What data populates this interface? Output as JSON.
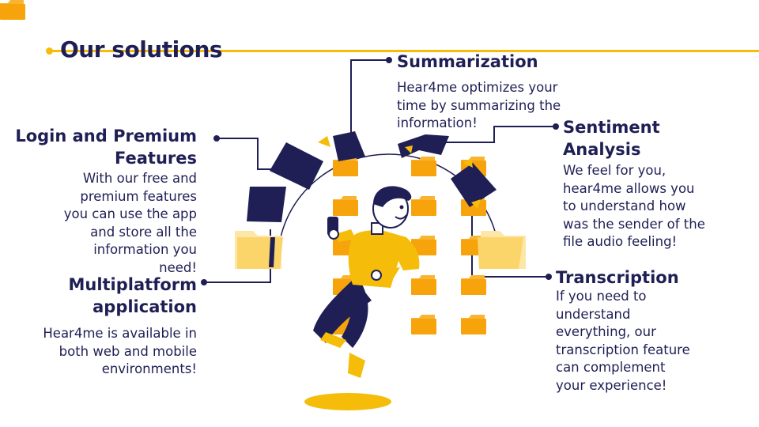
{
  "page": {
    "title": "Our solutions"
  },
  "features": {
    "summarization": {
      "title": "Summarization",
      "lines": [
        "Hear4me optimizes your",
        "time by summarizing the",
        "information!"
      ]
    },
    "sentiment": {
      "title_lines": [
        "Sentiment",
        "Analysis"
      ],
      "lines": [
        "We feel for you,",
        "hear4me allows you",
        "to understand how",
        "was the sender of the",
        "file audio feeling!"
      ]
    },
    "login": {
      "title_lines": [
        "Login and Premium",
        "Features"
      ],
      "lines": [
        "With our free and",
        "premium features",
        "you can use the app",
        "and store all the",
        "information you",
        "need!"
      ]
    },
    "multiplatform": {
      "title_lines": [
        "Multiplatform",
        "application"
      ],
      "lines": [
        "Hear4me is available in",
        "both web and mobile",
        "environments!"
      ]
    },
    "transcription": {
      "title": "Transcription",
      "lines": [
        "If you need to",
        "understand",
        "everything, our",
        "transcription feature",
        "can complement",
        "your experience!"
      ]
    }
  },
  "colors": {
    "navy": "#1f1f55",
    "accent": "#f5bd0a",
    "folder": "#f7a30c",
    "skin": "#ffffff"
  }
}
